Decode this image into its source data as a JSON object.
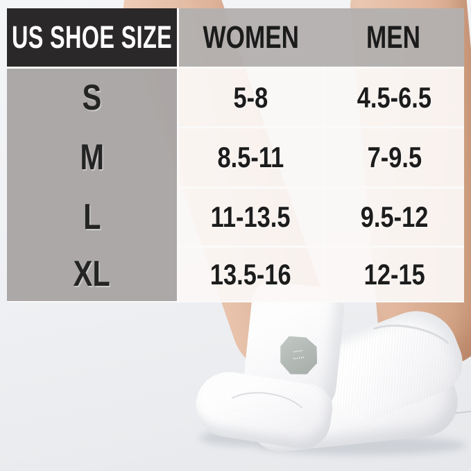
{
  "chart_data": {
    "type": "table",
    "title": "US SHOE SIZE",
    "columns": [
      "US SHOE SIZE",
      "WOMEN",
      "MEN"
    ],
    "rows": [
      [
        "S",
        "5-8",
        "4.5-6.5"
      ],
      [
        "M",
        "8.5-11",
        "7-9.5"
      ],
      [
        "L",
        "11-13.5",
        "9.5-12"
      ],
      [
        "XL",
        "13.5-16",
        "12-15"
      ]
    ],
    "layout": {
      "grid": true,
      "legend": false,
      "overlay": "size table overlaid on product photo of crossed feet wearing white ankle socks"
    }
  },
  "photo": {
    "sock_patch": {
      "line1": "▪▪▪▪▪",
      "line2": "▪▪▪▪▪▪"
    }
  },
  "colors": {
    "header_black_bg": "#2b2829",
    "header_gray_bg": "#b3b0af",
    "size_column_bg": "#a8a5a4",
    "cell_bg": "#faf7f5",
    "cell_border": "#fbfaf9",
    "text_dark": "#1c1c1c",
    "text_white": "#ffffff",
    "patch_gray": "#b6bcb8",
    "skin": "#e2bba4",
    "background": "#eff0f3"
  }
}
